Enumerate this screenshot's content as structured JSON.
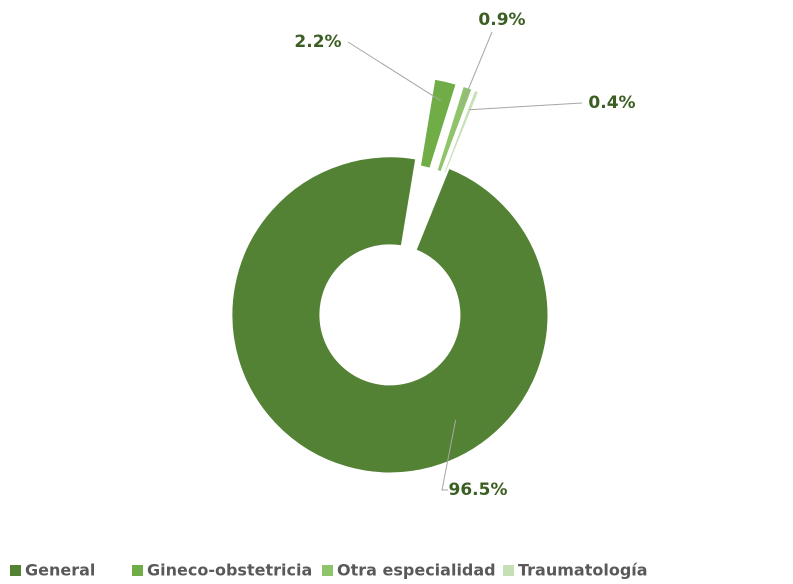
{
  "chart_data": {
    "type": "donut",
    "categories": [
      "General",
      "Gineco-obstetricia",
      "Otra especialidad",
      "Traumatología"
    ],
    "values": [
      96.5,
      2.2,
      0.9,
      0.4
    ],
    "value_labels": [
      "96.5%",
      "2.2%",
      "0.9%",
      "0.4%"
    ],
    "colors": [
      "#548235",
      "#70ad47",
      "#8fc46a",
      "#c5e0b4"
    ],
    "legend": "bottom"
  }
}
